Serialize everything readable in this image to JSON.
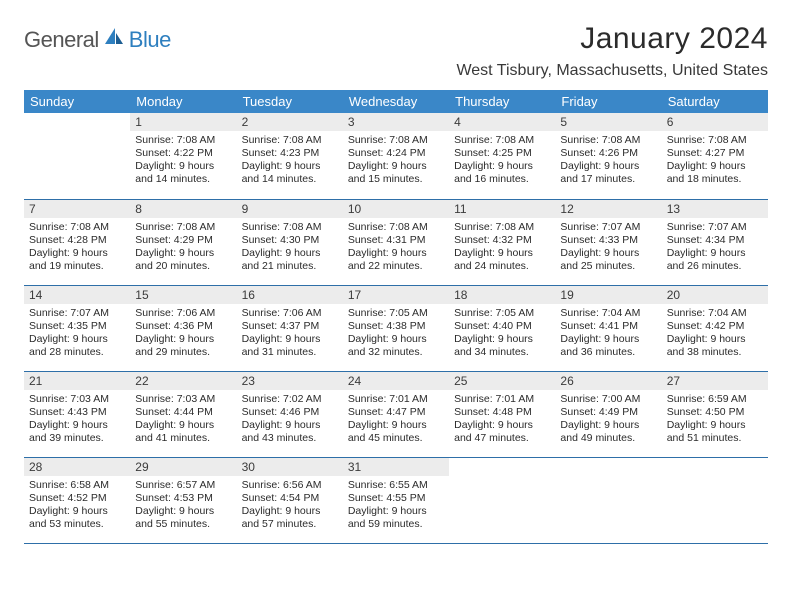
{
  "brand": {
    "part1": "General",
    "part2": "Blue"
  },
  "title": "January 2024",
  "location": "West Tisbury, Massachusetts, United States",
  "colors": {
    "header_bg": "#3a87c8",
    "header_text": "#ffffff",
    "daynum_bg": "#ececec",
    "rule": "#2e6fa8",
    "logo_blue": "#2e7fbf"
  },
  "weekdays": [
    "Sunday",
    "Monday",
    "Tuesday",
    "Wednesday",
    "Thursday",
    "Friday",
    "Saturday"
  ],
  "weeks": [
    [
      null,
      {
        "n": "1",
        "sr": "Sunrise: 7:08 AM",
        "ss": "Sunset: 4:22 PM",
        "d1": "Daylight: 9 hours",
        "d2": "and 14 minutes."
      },
      {
        "n": "2",
        "sr": "Sunrise: 7:08 AM",
        "ss": "Sunset: 4:23 PM",
        "d1": "Daylight: 9 hours",
        "d2": "and 14 minutes."
      },
      {
        "n": "3",
        "sr": "Sunrise: 7:08 AM",
        "ss": "Sunset: 4:24 PM",
        "d1": "Daylight: 9 hours",
        "d2": "and 15 minutes."
      },
      {
        "n": "4",
        "sr": "Sunrise: 7:08 AM",
        "ss": "Sunset: 4:25 PM",
        "d1": "Daylight: 9 hours",
        "d2": "and 16 minutes."
      },
      {
        "n": "5",
        "sr": "Sunrise: 7:08 AM",
        "ss": "Sunset: 4:26 PM",
        "d1": "Daylight: 9 hours",
        "d2": "and 17 minutes."
      },
      {
        "n": "6",
        "sr": "Sunrise: 7:08 AM",
        "ss": "Sunset: 4:27 PM",
        "d1": "Daylight: 9 hours",
        "d2": "and 18 minutes."
      }
    ],
    [
      {
        "n": "7",
        "sr": "Sunrise: 7:08 AM",
        "ss": "Sunset: 4:28 PM",
        "d1": "Daylight: 9 hours",
        "d2": "and 19 minutes."
      },
      {
        "n": "8",
        "sr": "Sunrise: 7:08 AM",
        "ss": "Sunset: 4:29 PM",
        "d1": "Daylight: 9 hours",
        "d2": "and 20 minutes."
      },
      {
        "n": "9",
        "sr": "Sunrise: 7:08 AM",
        "ss": "Sunset: 4:30 PM",
        "d1": "Daylight: 9 hours",
        "d2": "and 21 minutes."
      },
      {
        "n": "10",
        "sr": "Sunrise: 7:08 AM",
        "ss": "Sunset: 4:31 PM",
        "d1": "Daylight: 9 hours",
        "d2": "and 22 minutes."
      },
      {
        "n": "11",
        "sr": "Sunrise: 7:08 AM",
        "ss": "Sunset: 4:32 PM",
        "d1": "Daylight: 9 hours",
        "d2": "and 24 minutes."
      },
      {
        "n": "12",
        "sr": "Sunrise: 7:07 AM",
        "ss": "Sunset: 4:33 PM",
        "d1": "Daylight: 9 hours",
        "d2": "and 25 minutes."
      },
      {
        "n": "13",
        "sr": "Sunrise: 7:07 AM",
        "ss": "Sunset: 4:34 PM",
        "d1": "Daylight: 9 hours",
        "d2": "and 26 minutes."
      }
    ],
    [
      {
        "n": "14",
        "sr": "Sunrise: 7:07 AM",
        "ss": "Sunset: 4:35 PM",
        "d1": "Daylight: 9 hours",
        "d2": "and 28 minutes."
      },
      {
        "n": "15",
        "sr": "Sunrise: 7:06 AM",
        "ss": "Sunset: 4:36 PM",
        "d1": "Daylight: 9 hours",
        "d2": "and 29 minutes."
      },
      {
        "n": "16",
        "sr": "Sunrise: 7:06 AM",
        "ss": "Sunset: 4:37 PM",
        "d1": "Daylight: 9 hours",
        "d2": "and 31 minutes."
      },
      {
        "n": "17",
        "sr": "Sunrise: 7:05 AM",
        "ss": "Sunset: 4:38 PM",
        "d1": "Daylight: 9 hours",
        "d2": "and 32 minutes."
      },
      {
        "n": "18",
        "sr": "Sunrise: 7:05 AM",
        "ss": "Sunset: 4:40 PM",
        "d1": "Daylight: 9 hours",
        "d2": "and 34 minutes."
      },
      {
        "n": "19",
        "sr": "Sunrise: 7:04 AM",
        "ss": "Sunset: 4:41 PM",
        "d1": "Daylight: 9 hours",
        "d2": "and 36 minutes."
      },
      {
        "n": "20",
        "sr": "Sunrise: 7:04 AM",
        "ss": "Sunset: 4:42 PM",
        "d1": "Daylight: 9 hours",
        "d2": "and 38 minutes."
      }
    ],
    [
      {
        "n": "21",
        "sr": "Sunrise: 7:03 AM",
        "ss": "Sunset: 4:43 PM",
        "d1": "Daylight: 9 hours",
        "d2": "and 39 minutes."
      },
      {
        "n": "22",
        "sr": "Sunrise: 7:03 AM",
        "ss": "Sunset: 4:44 PM",
        "d1": "Daylight: 9 hours",
        "d2": "and 41 minutes."
      },
      {
        "n": "23",
        "sr": "Sunrise: 7:02 AM",
        "ss": "Sunset: 4:46 PM",
        "d1": "Daylight: 9 hours",
        "d2": "and 43 minutes."
      },
      {
        "n": "24",
        "sr": "Sunrise: 7:01 AM",
        "ss": "Sunset: 4:47 PM",
        "d1": "Daylight: 9 hours",
        "d2": "and 45 minutes."
      },
      {
        "n": "25",
        "sr": "Sunrise: 7:01 AM",
        "ss": "Sunset: 4:48 PM",
        "d1": "Daylight: 9 hours",
        "d2": "and 47 minutes."
      },
      {
        "n": "26",
        "sr": "Sunrise: 7:00 AM",
        "ss": "Sunset: 4:49 PM",
        "d1": "Daylight: 9 hours",
        "d2": "and 49 minutes."
      },
      {
        "n": "27",
        "sr": "Sunrise: 6:59 AM",
        "ss": "Sunset: 4:50 PM",
        "d1": "Daylight: 9 hours",
        "d2": "and 51 minutes."
      }
    ],
    [
      {
        "n": "28",
        "sr": "Sunrise: 6:58 AM",
        "ss": "Sunset: 4:52 PM",
        "d1": "Daylight: 9 hours",
        "d2": "and 53 minutes."
      },
      {
        "n": "29",
        "sr": "Sunrise: 6:57 AM",
        "ss": "Sunset: 4:53 PM",
        "d1": "Daylight: 9 hours",
        "d2": "and 55 minutes."
      },
      {
        "n": "30",
        "sr": "Sunrise: 6:56 AM",
        "ss": "Sunset: 4:54 PM",
        "d1": "Daylight: 9 hours",
        "d2": "and 57 minutes."
      },
      {
        "n": "31",
        "sr": "Sunrise: 6:55 AM",
        "ss": "Sunset: 4:55 PM",
        "d1": "Daylight: 9 hours",
        "d2": "and 59 minutes."
      },
      null,
      null,
      null
    ]
  ]
}
